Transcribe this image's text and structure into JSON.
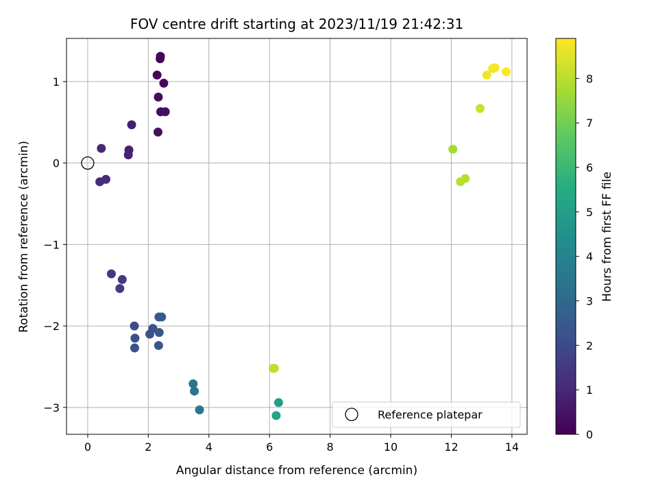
{
  "chart_data": {
    "type": "scatter",
    "title": "FOV centre drift starting at 2023/11/19 21:42:31",
    "xlabel": "Angular distance from reference (arcmin)",
    "ylabel": "Rotation from reference (arcmin)",
    "xlim": [
      -0.7,
      14.5
    ],
    "ylim": [
      -3.33,
      1.53
    ],
    "xticks": [
      0,
      2,
      4,
      6,
      8,
      10,
      12,
      14
    ],
    "yticks": [
      -3,
      -2,
      -1,
      0,
      1
    ],
    "grid": true,
    "colormap": "viridis",
    "colorbar": {
      "label": "Hours from first FF file",
      "range": [
        0,
        8.9
      ],
      "ticks": [
        0,
        1,
        2,
        3,
        4,
        5,
        6,
        7,
        8
      ]
    },
    "legend": {
      "entries": [
        "Reference platepar"
      ],
      "placement": "lower-right"
    },
    "reference_point": {
      "x": 0,
      "y": 0,
      "name": "Reference platepar"
    },
    "points": [
      {
        "x": 2.4,
        "y": 1.31,
        "hours": 0.05
      },
      {
        "x": 2.39,
        "y": 1.28,
        "hours": 0.1
      },
      {
        "x": 2.29,
        "y": 1.08,
        "hours": 0.15
      },
      {
        "x": 2.51,
        "y": 0.98,
        "hours": 0.2
      },
      {
        "x": 2.33,
        "y": 0.81,
        "hours": 0.25
      },
      {
        "x": 2.41,
        "y": 0.63,
        "hours": 0.3
      },
      {
        "x": 2.56,
        "y": 0.63,
        "hours": 0.35
      },
      {
        "x": 2.32,
        "y": 0.38,
        "hours": 0.4
      },
      {
        "x": 1.45,
        "y": 0.47,
        "hours": 0.75
      },
      {
        "x": 1.36,
        "y": 0.16,
        "hours": 0.85
      },
      {
        "x": 1.34,
        "y": 0.1,
        "hours": 0.9
      },
      {
        "x": 0.45,
        "y": 0.18,
        "hours": 1.0
      },
      {
        "x": 0.4,
        "y": -0.23,
        "hours": 1.1
      },
      {
        "x": 0.6,
        "y": -0.2,
        "hours": 1.15
      },
      {
        "x": 0.78,
        "y": -1.36,
        "hours": 1.5
      },
      {
        "x": 1.14,
        "y": -1.43,
        "hours": 1.55
      },
      {
        "x": 1.06,
        "y": -1.54,
        "hours": 1.6
      },
      {
        "x": 1.54,
        "y": -2.0,
        "hours": 2.1
      },
      {
        "x": 1.56,
        "y": -2.15,
        "hours": 2.15
      },
      {
        "x": 1.55,
        "y": -2.27,
        "hours": 2.2
      },
      {
        "x": 2.15,
        "y": -2.03,
        "hours": 2.25
      },
      {
        "x": 2.05,
        "y": -2.1,
        "hours": 2.3
      },
      {
        "x": 2.36,
        "y": -2.08,
        "hours": 2.35
      },
      {
        "x": 2.34,
        "y": -2.24,
        "hours": 2.4
      },
      {
        "x": 2.35,
        "y": -1.89,
        "hours": 2.45
      },
      {
        "x": 2.44,
        "y": -1.89,
        "hours": 2.5
      },
      {
        "x": 3.48,
        "y": -2.71,
        "hours": 3.4
      },
      {
        "x": 3.52,
        "y": -2.8,
        "hours": 3.45
      },
      {
        "x": 3.69,
        "y": -3.03,
        "hours": 3.5
      },
      {
        "x": 6.3,
        "y": -2.94,
        "hours": 5.0
      },
      {
        "x": 6.22,
        "y": -3.1,
        "hours": 5.1
      },
      {
        "x": 6.12,
        "y": -2.52,
        "hours": 8.0
      },
      {
        "x": 6.16,
        "y": -2.52,
        "hours": 8.05
      },
      {
        "x": 12.05,
        "y": 0.17,
        "hours": 7.7
      },
      {
        "x": 12.3,
        "y": -0.23,
        "hours": 8.0
      },
      {
        "x": 12.46,
        "y": -0.19,
        "hours": 7.95
      },
      {
        "x": 12.95,
        "y": 0.67,
        "hours": 8.2
      },
      {
        "x": 13.17,
        "y": 1.08,
        "hours": 8.7
      },
      {
        "x": 13.36,
        "y": 1.16,
        "hours": 8.75
      },
      {
        "x": 13.44,
        "y": 1.17,
        "hours": 8.8
      },
      {
        "x": 13.81,
        "y": 1.12,
        "hours": 8.85
      }
    ]
  }
}
